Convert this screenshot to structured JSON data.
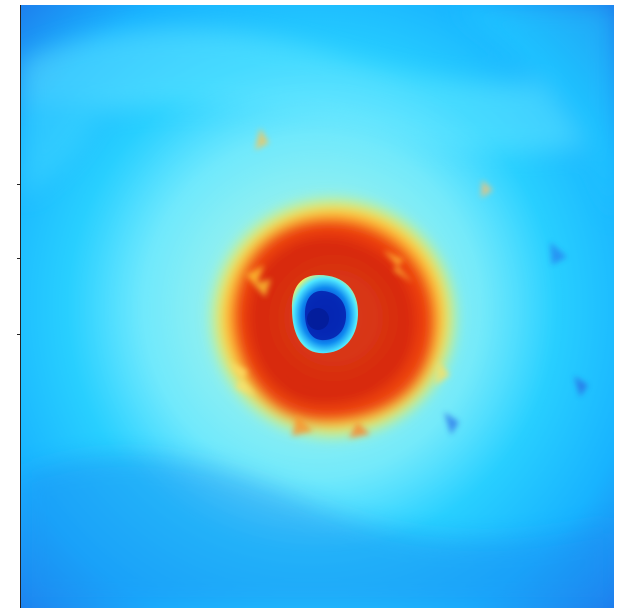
{
  "image": {
    "subject": "storm-radar-heatmap",
    "colormap": "jet",
    "colors": {
      "low": "#1f4fd8",
      "low_mid": "#1ea7ff",
      "mid": "#6ce9ff",
      "mid_high": "#eef95c",
      "high": "#ff6a12",
      "peak": "#c80f0f",
      "eye": "#062ab8"
    }
  }
}
